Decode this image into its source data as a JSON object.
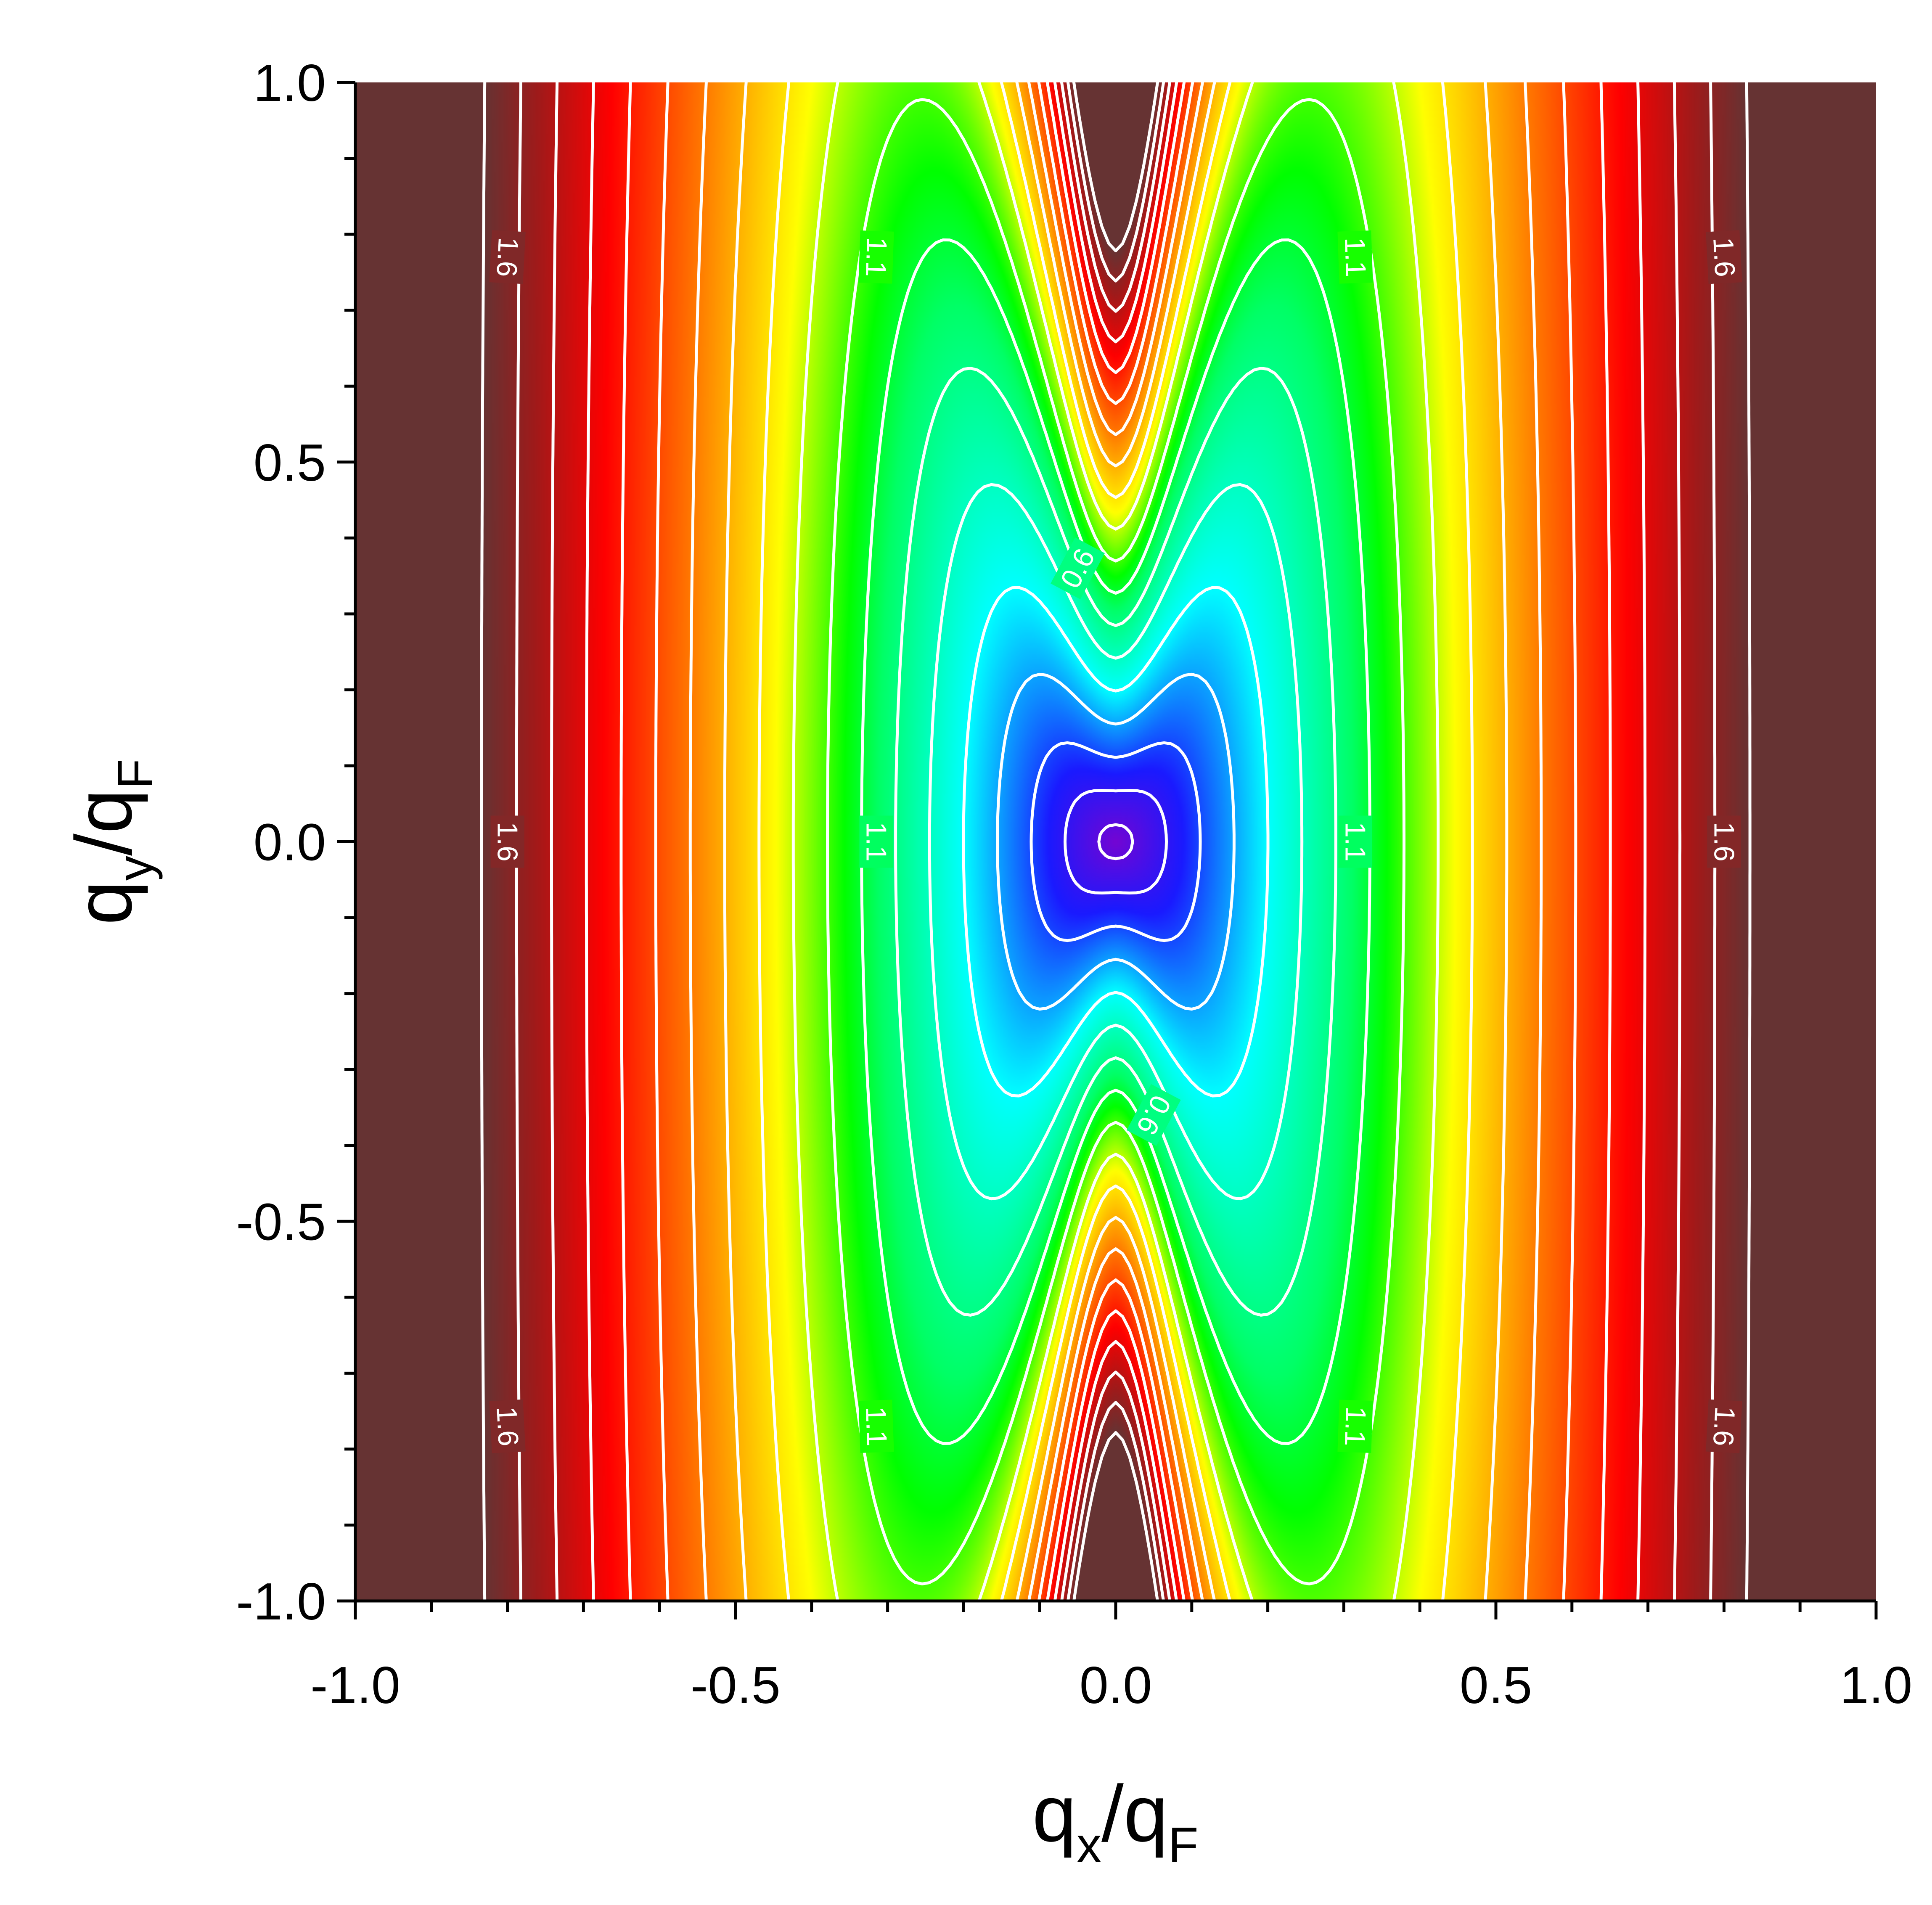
{
  "chart_data": {
    "type": "heatmap",
    "title": "",
    "xlabel": {
      "base": "q",
      "sub": "x",
      "sep": "/",
      "base2": "q",
      "sub2": "F"
    },
    "ylabel": {
      "base": "q",
      "sub": "y",
      "sep": "/",
      "base2": "q",
      "sub2": "F"
    },
    "xlim": [
      -1.0,
      1.0
    ],
    "ylim": [
      -1.0,
      1.0
    ],
    "x_ticks": [
      {
        "value": -1.0,
        "label": "-1.0"
      },
      {
        "value": -0.5,
        "label": "-0.5"
      },
      {
        "value": 0.0,
        "label": "0.0"
      },
      {
        "value": 0.5,
        "label": "0.5"
      },
      {
        "value": 1.0,
        "label": "1.0"
      }
    ],
    "y_ticks": [
      {
        "value": 1.0,
        "label": "1.0"
      },
      {
        "value": 0.5,
        "label": "0.5"
      },
      {
        "value": 0.0,
        "label": "0.0"
      },
      {
        "value": -0.5,
        "label": "-0.5"
      },
      {
        "value": -1.0,
        "label": "-1.0"
      }
    ],
    "minor_tick_step": 0.1,
    "z_range": [
      0.0,
      2.0
    ],
    "contour_levels": [
      0.1,
      0.2,
      0.3,
      0.4,
      0.5,
      0.6,
      0.7,
      0.8,
      0.9,
      1.0,
      1.1,
      1.2,
      1.3,
      1.4,
      1.5,
      1.6,
      1.7,
      1.8,
      1.9
    ],
    "colormap": [
      {
        "value": 0.0,
        "color": "#8a00c8"
      },
      {
        "value": 0.25,
        "color": "#1a1aff"
      },
      {
        "value": 0.5,
        "color": "#00ffff"
      },
      {
        "value": 0.75,
        "color": "#00ff66"
      },
      {
        "value": 0.85,
        "color": "#00ff00"
      },
      {
        "value": 1.05,
        "color": "#ffff00"
      },
      {
        "value": 1.3,
        "color": "#ff7a00"
      },
      {
        "value": 1.55,
        "color": "#ff0000"
      },
      {
        "value": 1.75,
        "color": "#a01a1a"
      },
      {
        "value": 1.9,
        "color": "#663333"
      }
    ],
    "contour_color": "#ffffff",
    "contour_labels": [
      {
        "text": "0.6",
        "x": -0.05,
        "y": 0.36,
        "angle": -62
      },
      {
        "text": "0.6",
        "x": 0.05,
        "y": -0.36,
        "angle": 118
      },
      {
        "text": "1.1",
        "x": -0.315,
        "y": 0.77,
        "angle": 92
      },
      {
        "text": "1.1",
        "x": -0.315,
        "y": 0.0,
        "angle": 90
      },
      {
        "text": "1.1",
        "x": -0.315,
        "y": -0.77,
        "angle": 88
      },
      {
        "text": "1.1",
        "x": 0.315,
        "y": 0.77,
        "angle": 88
      },
      {
        "text": "1.1",
        "x": 0.315,
        "y": 0.0,
        "angle": 90
      },
      {
        "text": "1.1",
        "x": 0.315,
        "y": -0.77,
        "angle": 92
      },
      {
        "text": "1.6",
        "x": -0.8,
        "y": 0.77,
        "angle": 93
      },
      {
        "text": "1.6",
        "x": -0.8,
        "y": 0.0,
        "angle": 90
      },
      {
        "text": "1.6",
        "x": -0.8,
        "y": -0.77,
        "angle": 87
      },
      {
        "text": "1.6",
        "x": 0.8,
        "y": 0.77,
        "angle": 87
      },
      {
        "text": "1.6",
        "x": 0.8,
        "y": 0.0,
        "angle": 90
      },
      {
        "text": "1.6",
        "x": 0.8,
        "y": -0.77,
        "angle": 93
      }
    ]
  }
}
